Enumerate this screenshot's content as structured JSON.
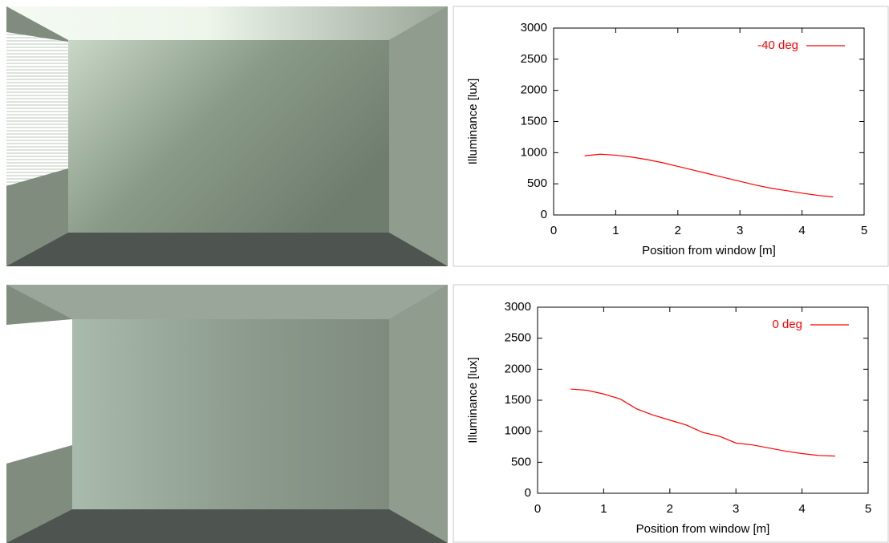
{
  "chart_data": [
    {
      "type": "line",
      "xlabel": "Position from window [m]",
      "ylabel": "Illuminance [lux]",
      "x": [
        0.5,
        0.75,
        1,
        1.25,
        1.5,
        1.75,
        2,
        2.25,
        2.5,
        2.75,
        3,
        3.25,
        3.5,
        3.75,
        4,
        4.25,
        4.5
      ],
      "series": [
        {
          "name": "-40 deg",
          "color": "#ff0000",
          "values": [
            950,
            975,
            960,
            930,
            890,
            840,
            780,
            720,
            660,
            600,
            540,
            480,
            430,
            390,
            350,
            315,
            290
          ]
        }
      ],
      "xlim": [
        0,
        5
      ],
      "ylim": [
        0,
        3000
      ],
      "xticks": [
        0,
        1,
        2,
        3,
        4,
        5
      ],
      "yticks": [
        0,
        500,
        1000,
        1500,
        2000,
        2500,
        3000
      ],
      "legend": "upper right"
    },
    {
      "type": "line",
      "xlabel": "Position from window [m]",
      "ylabel": "Illuminance [lux]",
      "x": [
        0.5,
        0.75,
        1,
        1.25,
        1.5,
        1.75,
        2,
        2.25,
        2.5,
        2.75,
        3,
        3.25,
        3.5,
        3.75,
        4,
        4.25,
        4.5
      ],
      "series": [
        {
          "name": "0 deg",
          "color": "#ff0000",
          "values": [
            1680,
            1660,
            1600,
            1520,
            1360,
            1260,
            1180,
            1100,
            980,
            920,
            810,
            780,
            730,
            680,
            640,
            610,
            600
          ]
        }
      ],
      "xlim": [
        0,
        5
      ],
      "ylim": [
        0,
        3000
      ],
      "xticks": [
        0,
        1,
        2,
        3,
        4,
        5
      ],
      "yticks": [
        0,
        500,
        1000,
        1500,
        2000,
        2500,
        3000
      ],
      "legend": "upper right"
    }
  ]
}
